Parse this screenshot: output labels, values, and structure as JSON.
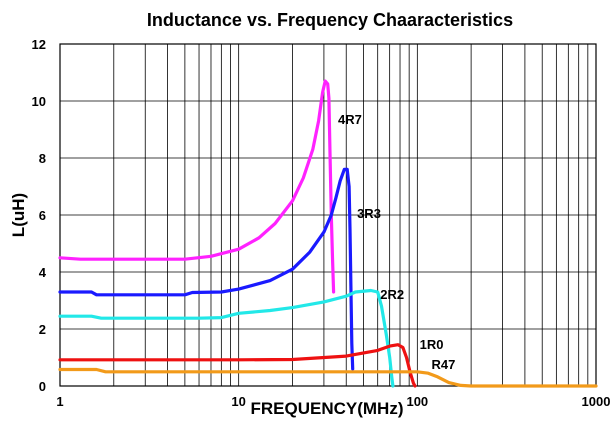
{
  "chart_data": {
    "type": "line",
    "title": "Inductance vs. Frequency Chaaracteristics",
    "xlabel": "FREQUENCY(MHz)",
    "ylabel": "L(uH)",
    "x_scale": "log",
    "xlim": [
      1,
      1000
    ],
    "ylim": [
      0,
      12
    ],
    "x_ticks": [
      1,
      10,
      100,
      1000
    ],
    "x_tick_labels": [
      "1",
      "10",
      "100",
      "1000"
    ],
    "y_ticks": [
      0,
      2,
      4,
      6,
      8,
      10,
      12
    ],
    "y_tick_labels": [
      "0",
      "2",
      "4",
      "6",
      "8",
      "10",
      "12"
    ],
    "grid": true,
    "legend": "inline labels",
    "series": [
      {
        "name": "4R7",
        "color": "#ff22ff",
        "points": [
          [
            1,
            4.5
          ],
          [
            1.3,
            4.45
          ],
          [
            2,
            4.45
          ],
          [
            5,
            4.45
          ],
          [
            7,
            4.55
          ],
          [
            10,
            4.8
          ],
          [
            13,
            5.2
          ],
          [
            16,
            5.7
          ],
          [
            20,
            6.5
          ],
          [
            23,
            7.3
          ],
          [
            26,
            8.3
          ],
          [
            28,
            9.3
          ],
          [
            29.5,
            10.3
          ],
          [
            30.5,
            10.7
          ],
          [
            31.5,
            10.6
          ],
          [
            32,
            10.1
          ],
          [
            32.5,
            8.0
          ],
          [
            33,
            6.0
          ],
          [
            33.5,
            4.5
          ],
          [
            34,
            3.3
          ]
        ]
      },
      {
        "name": "3R3",
        "color": "#1a1aff",
        "points": [
          [
            1,
            3.3
          ],
          [
            1.5,
            3.3
          ],
          [
            1.6,
            3.2
          ],
          [
            2,
            3.2
          ],
          [
            5,
            3.2
          ],
          [
            5.5,
            3.28
          ],
          [
            8,
            3.3
          ],
          [
            10,
            3.4
          ],
          [
            15,
            3.7
          ],
          [
            20,
            4.1
          ],
          [
            25,
            4.7
          ],
          [
            30,
            5.4
          ],
          [
            33,
            6.0
          ],
          [
            35,
            6.6
          ],
          [
            37,
            7.2
          ],
          [
            39,
            7.6
          ],
          [
            40.5,
            7.6
          ],
          [
            41.5,
            7.0
          ],
          [
            42,
            5.5
          ],
          [
            42.5,
            3.5
          ],
          [
            43,
            1.5
          ],
          [
            43.5,
            0.6
          ]
        ]
      },
      {
        "name": "2R2",
        "color": "#22e8e8",
        "points": [
          [
            1,
            2.45
          ],
          [
            1.5,
            2.45
          ],
          [
            1.7,
            2.38
          ],
          [
            3,
            2.38
          ],
          [
            6,
            2.38
          ],
          [
            8,
            2.4
          ],
          [
            10,
            2.55
          ],
          [
            15,
            2.65
          ],
          [
            20,
            2.75
          ],
          [
            30,
            2.95
          ],
          [
            40,
            3.15
          ],
          [
            45,
            3.3
          ],
          [
            55,
            3.35
          ],
          [
            60,
            3.3
          ],
          [
            63,
            2.8
          ],
          [
            67,
            1.8
          ],
          [
            70,
            1.0
          ],
          [
            72,
            0.3
          ],
          [
            73,
            0
          ]
        ]
      },
      {
        "name": "1R0",
        "color": "#ee1111",
        "points": [
          [
            1,
            0.92
          ],
          [
            2,
            0.92
          ],
          [
            5,
            0.92
          ],
          [
            10,
            0.92
          ],
          [
            20,
            0.93
          ],
          [
            40,
            1.05
          ],
          [
            60,
            1.25
          ],
          [
            70,
            1.4
          ],
          [
            78,
            1.45
          ],
          [
            83,
            1.35
          ],
          [
            87,
            1.0
          ],
          [
            91,
            0.5
          ],
          [
            95,
            0.1
          ],
          [
            97,
            0
          ]
        ]
      },
      {
        "name": "R47",
        "color": "#f29a1a",
        "points": [
          [
            1,
            0.58
          ],
          [
            1.6,
            0.58
          ],
          [
            1.8,
            0.5
          ],
          [
            5,
            0.5
          ],
          [
            20,
            0.5
          ],
          [
            60,
            0.5
          ],
          [
            100,
            0.5
          ],
          [
            115,
            0.45
          ],
          [
            130,
            0.32
          ],
          [
            150,
            0.12
          ],
          [
            175,
            0.02
          ],
          [
            200,
            0
          ],
          [
            500,
            0
          ],
          [
            1000,
            0
          ]
        ]
      }
    ]
  }
}
